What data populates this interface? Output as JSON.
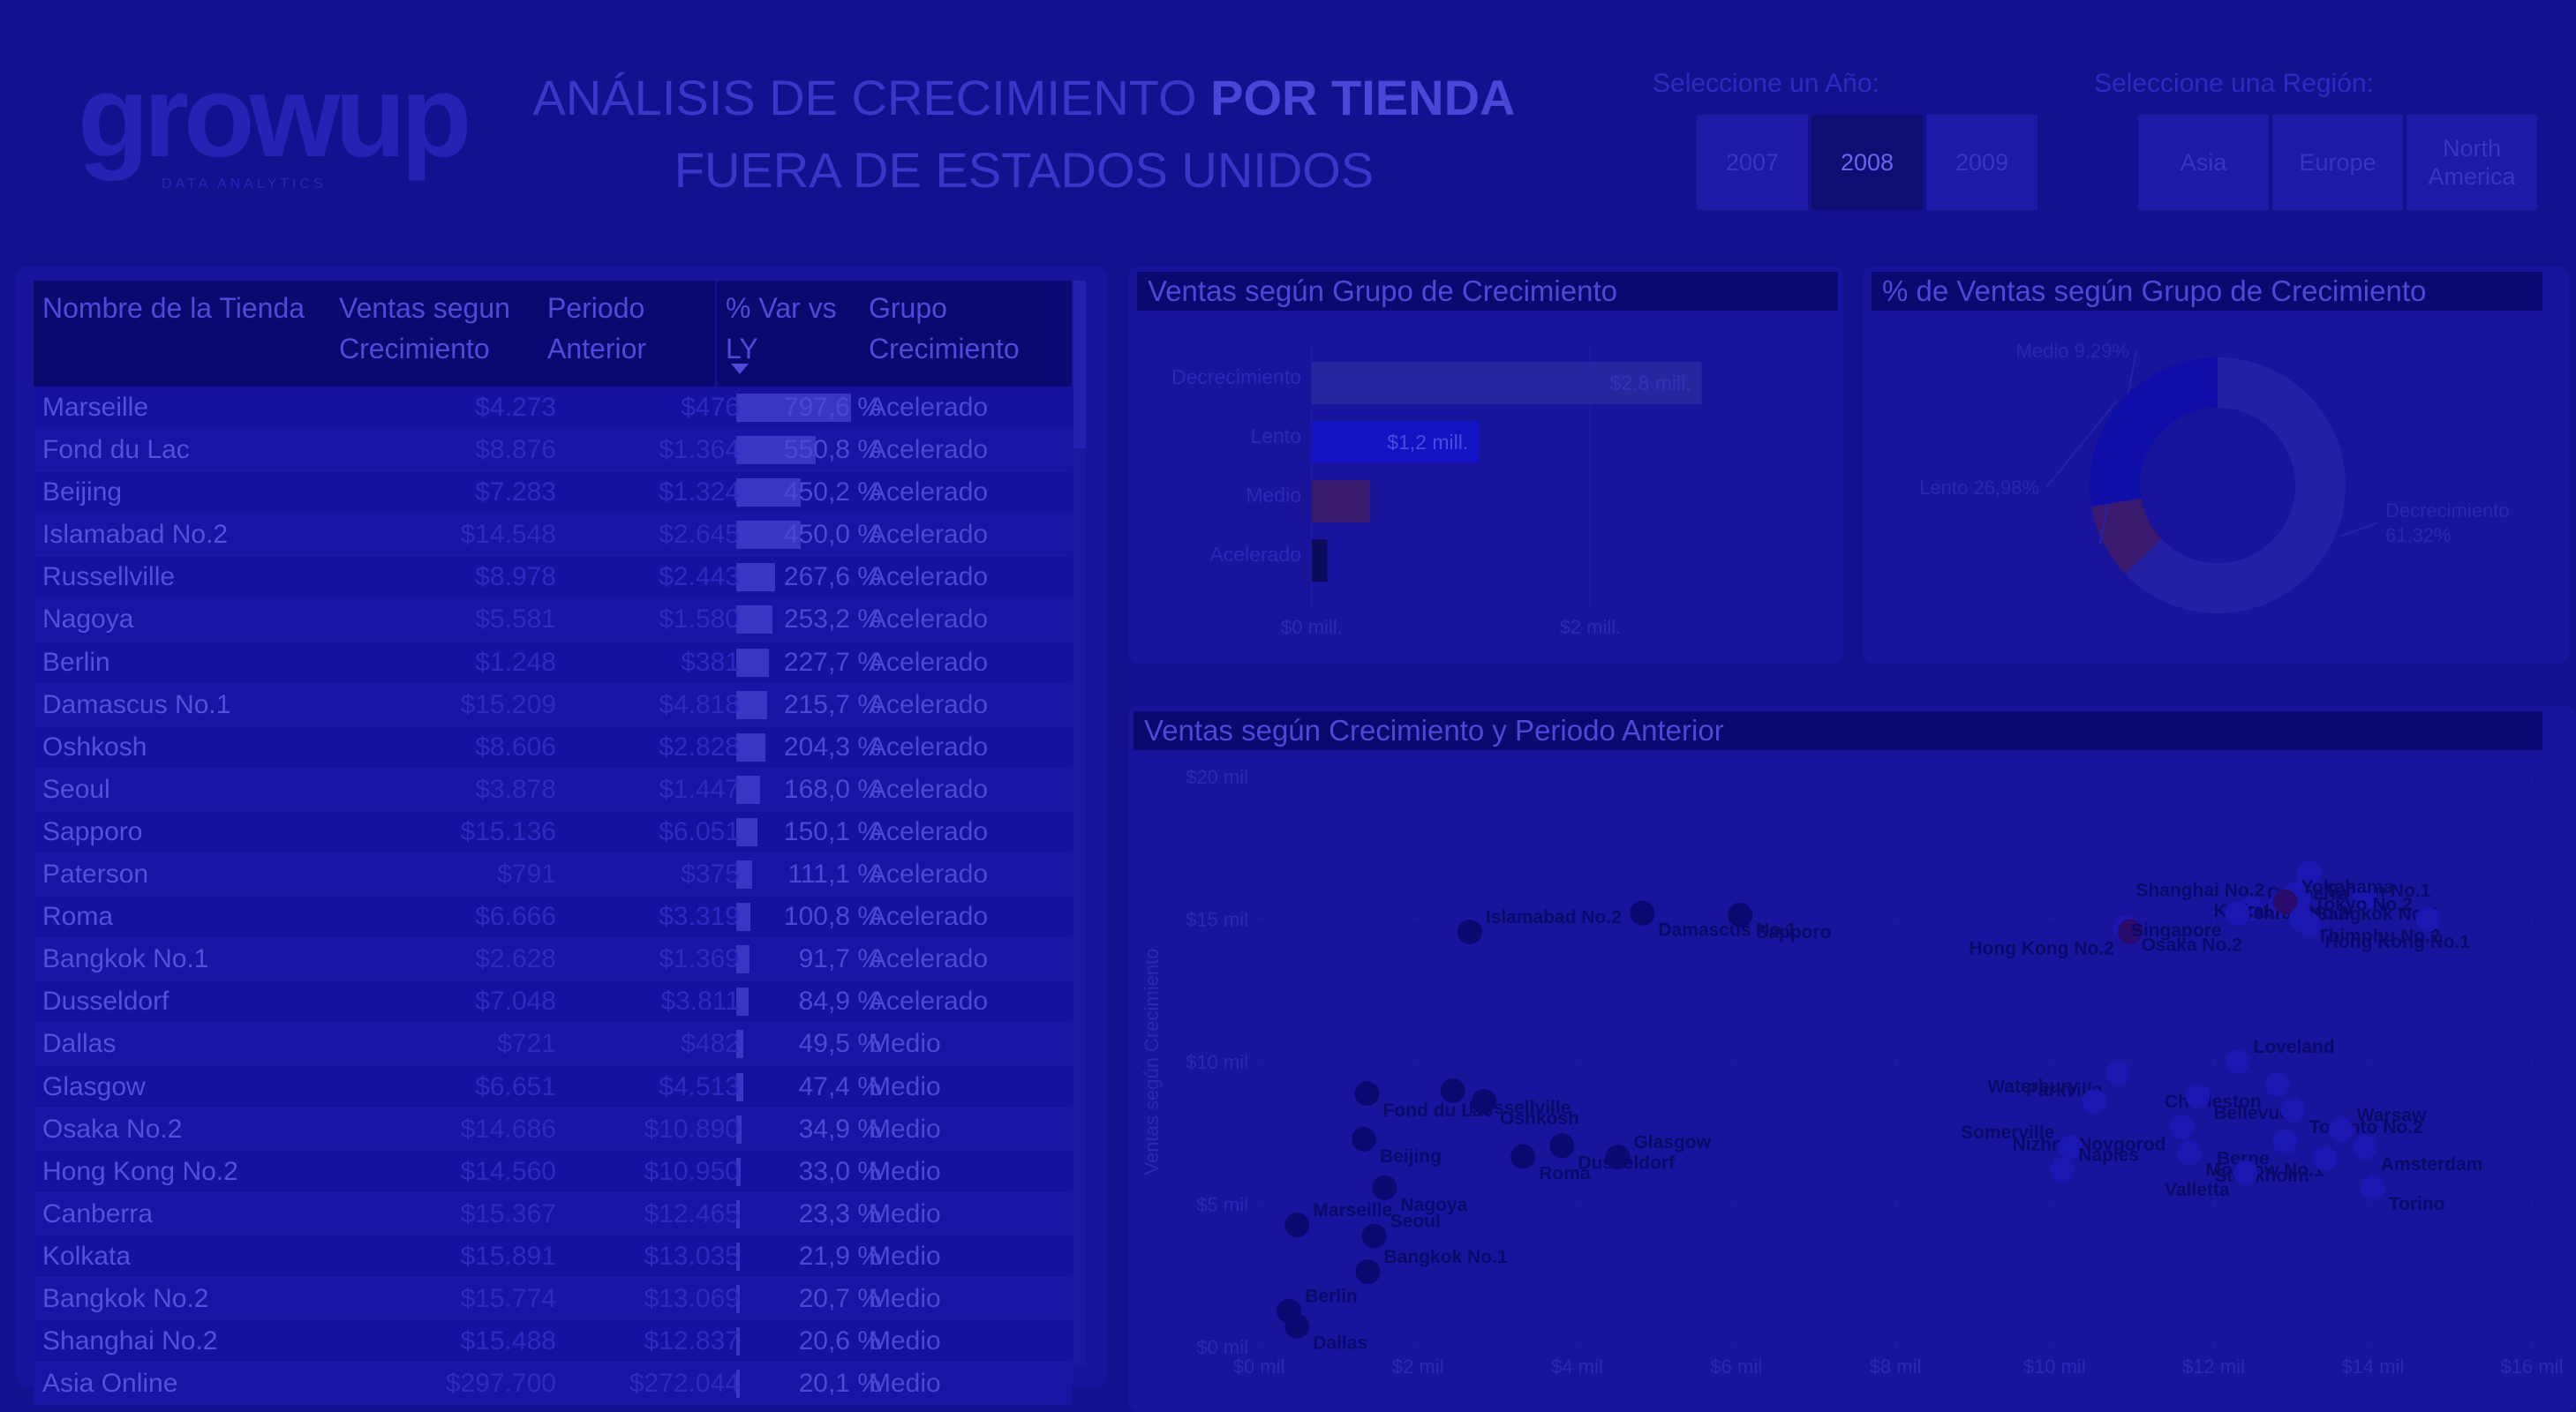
{
  "header": {
    "logo_text": "growup",
    "logo_sub": "DATA ANALYTICS",
    "title_line1_regular": "ANÁLISIS DE CRECIMIENTO ",
    "title_line1_bold": "POR TIENDA",
    "title_line2": "FUERA DE ESTADOS UNIDOS"
  },
  "year_slicer": {
    "label": "Seleccione un Año:",
    "options": [
      {
        "label": "2007",
        "selected": false
      },
      {
        "label": "2008",
        "selected": true
      },
      {
        "label": "2009",
        "selected": false
      }
    ]
  },
  "region_slicer": {
    "label": "Seleccione una Región:",
    "options": [
      {
        "label": "Asia",
        "selected": false
      },
      {
        "label": "Europe",
        "selected": false
      },
      {
        "label": "North America",
        "selected": false
      }
    ]
  },
  "table": {
    "columns": [
      "Nombre de la Tienda",
      "Ventas segun Crecimiento",
      "Periodo Anterior",
      "% Var vs LY",
      "Grupo Crecimiento"
    ],
    "rows": [
      {
        "name": "Marseille",
        "sales": "$4.273",
        "prev": "$476",
        "var": "797,6 %",
        "var_value": 797.6,
        "group": "Acelerado"
      },
      {
        "name": "Fond du Lac",
        "sales": "$8.876",
        "prev": "$1.364",
        "var": "550,8 %",
        "var_value": 550.8,
        "group": "Acelerado"
      },
      {
        "name": "Beijing",
        "sales": "$7.283",
        "prev": "$1.324",
        "var": "450,2 %",
        "var_value": 450.2,
        "group": "Acelerado"
      },
      {
        "name": "Islamabad No.2",
        "sales": "$14.548",
        "prev": "$2.645",
        "var": "450,0 %",
        "var_value": 450.0,
        "group": "Acelerado"
      },
      {
        "name": "Russellville",
        "sales": "$8.978",
        "prev": "$2.443",
        "var": "267,6 %",
        "var_value": 267.6,
        "group": "Acelerado"
      },
      {
        "name": "Nagoya",
        "sales": "$5.581",
        "prev": "$1.580",
        "var": "253,2 %",
        "var_value": 253.2,
        "group": "Acelerado"
      },
      {
        "name": "Berlin",
        "sales": "$1.248",
        "prev": "$381",
        "var": "227,7 %",
        "var_value": 227.7,
        "group": "Acelerado"
      },
      {
        "name": "Damascus No.1",
        "sales": "$15.209",
        "prev": "$4.818",
        "var": "215,7 %",
        "var_value": 215.7,
        "group": "Acelerado"
      },
      {
        "name": "Oshkosh",
        "sales": "$8.606",
        "prev": "$2.828",
        "var": "204,3 %",
        "var_value": 204.3,
        "group": "Acelerado"
      },
      {
        "name": "Seoul",
        "sales": "$3.878",
        "prev": "$1.447",
        "var": "168,0 %",
        "var_value": 168.0,
        "group": "Acelerado"
      },
      {
        "name": "Sapporo",
        "sales": "$15.136",
        "prev": "$6.051",
        "var": "150,1 %",
        "var_value": 150.1,
        "group": "Acelerado"
      },
      {
        "name": "Paterson",
        "sales": "$791",
        "prev": "$375",
        "var": "111,1 %",
        "var_value": 111.1,
        "group": "Acelerado"
      },
      {
        "name": "Roma",
        "sales": "$6.666",
        "prev": "$3.319",
        "var": "100,8 %",
        "var_value": 100.8,
        "group": "Acelerado"
      },
      {
        "name": "Bangkok No.1",
        "sales": "$2.628",
        "prev": "$1.369",
        "var": "91,7 %",
        "var_value": 91.7,
        "group": "Acelerado"
      },
      {
        "name": "Dusseldorf",
        "sales": "$7.048",
        "prev": "$3.811",
        "var": "84,9 %",
        "var_value": 84.9,
        "group": "Acelerado"
      },
      {
        "name": "Dallas",
        "sales": "$721",
        "prev": "$482",
        "var": "49,5 %",
        "var_value": 49.5,
        "group": "Medio"
      },
      {
        "name": "Glasgow",
        "sales": "$6.651",
        "prev": "$4.513",
        "var": "47,4 %",
        "var_value": 47.4,
        "group": "Medio"
      },
      {
        "name": "Osaka No.2",
        "sales": "$14.686",
        "prev": "$10.890",
        "var": "34,9 %",
        "var_value": 34.9,
        "group": "Medio"
      },
      {
        "name": "Hong Kong No.2",
        "sales": "$14.560",
        "prev": "$10.950",
        "var": "33,0 %",
        "var_value": 33.0,
        "group": "Medio"
      },
      {
        "name": "Canberra",
        "sales": "$15.367",
        "prev": "$12.465",
        "var": "23,3 %",
        "var_value": 23.3,
        "group": "Medio"
      },
      {
        "name": "Kolkata",
        "sales": "$15.891",
        "prev": "$13.035",
        "var": "21,9 %",
        "var_value": 21.9,
        "group": "Medio"
      },
      {
        "name": "Bangkok No.2",
        "sales": "$15.774",
        "prev": "$13.069",
        "var": "20,7 %",
        "var_value": 20.7,
        "group": "Medio"
      },
      {
        "name": "Shanghai No.2",
        "sales": "$15.488",
        "prev": "$12.837",
        "var": "20,6 %",
        "var_value": 20.6,
        "group": "Medio"
      },
      {
        "name": "Asia Online",
        "sales": "$297.700",
        "prev": "$272.044",
        "var": "20,1 %",
        "var_value": 20.1,
        "group": "Medio"
      }
    ]
  },
  "bar_panel_title": "Ventas según Grupo de Crecimiento",
  "donut_panel_title": "% de Ventas según Grupo de Crecimiento",
  "scatter_panel_title": "Ventas según Crecimiento y Periodo Anterior",
  "chart_data": [
    {
      "type": "bar",
      "orientation": "horizontal",
      "title": "Ventas según Grupo de Crecimiento",
      "categories": [
        "Decrecimiento",
        "Lento",
        "Medio",
        "Acelerado"
      ],
      "values": [
        2.8,
        1.2,
        0.42,
        0.11
      ],
      "value_labels": [
        "$2,8 mill.",
        "$1,2 mill.",
        "",
        ""
      ],
      "xticks": [
        "$0 mill.",
        "$2 mill."
      ],
      "xtick_values": [
        0,
        2
      ],
      "xlim": [
        0,
        3.5
      ],
      "colors": [
        "#29259f",
        "#1313c4",
        "#3a1a6e",
        "#0c0a5c"
      ]
    },
    {
      "type": "pie",
      "donut": true,
      "title": "% de Ventas según Grupo de Crecimiento",
      "labels": [
        "Decrecimiento",
        "Medio",
        "Lento"
      ],
      "values": [
        61.32,
        9.29,
        26.98
      ],
      "slice_labels": [
        "Decrecimiento 61,32%",
        "Medio 9,29%",
        "Lento 26,98%"
      ],
      "colors": [
        "#2420a6",
        "#3a1a6e",
        "#0f0ea8"
      ]
    },
    {
      "type": "scatter",
      "title": "Ventas según Crecimiento y Periodo Anterior",
      "ylabel": "Ventas según Crecimiento",
      "yticks": [
        "$0 mil",
        "$5 mil",
        "$10 mil",
        "$15 mil",
        "$20 mil"
      ],
      "ytick_values": [
        0,
        5,
        10,
        15,
        20
      ],
      "xticks": [
        "$0 mil",
        "$2 mil",
        "$4 mil",
        "$6 mil",
        "$8 mil",
        "$10 mil",
        "$12 mil",
        "$14 mil",
        "$16 mil"
      ],
      "xtick_values": [
        0,
        2,
        4,
        6,
        8,
        10,
        12,
        14,
        16
      ],
      "xlim": [
        0,
        16
      ],
      "ylim": [
        0,
        20
      ],
      "points": [
        {
          "label": "Marseille",
          "x": 0.48,
          "y": 4.27
        },
        {
          "label": "Fond du Lac",
          "x": 1.36,
          "y": 8.88
        },
        {
          "label": "Beijing",
          "x": 1.32,
          "y": 7.28
        },
        {
          "label": "Islamabad No.2",
          "x": 2.65,
          "y": 14.55
        },
        {
          "label": "Russellville",
          "x": 2.44,
          "y": 8.98
        },
        {
          "label": "Nagoya",
          "x": 1.58,
          "y": 5.58
        },
        {
          "label": "Berlin",
          "x": 0.38,
          "y": 1.25
        },
        {
          "label": "Damascus No.1",
          "x": 4.82,
          "y": 15.21
        },
        {
          "label": "Oshkosh",
          "x": 2.83,
          "y": 8.61
        },
        {
          "label": "Seoul",
          "x": 1.45,
          "y": 3.88
        },
        {
          "label": "Sapporo",
          "x": 6.05,
          "y": 15.14
        },
        {
          "label": "Roma",
          "x": 3.32,
          "y": 6.67
        },
        {
          "label": "Bangkok No.1",
          "x": 1.37,
          "y": 2.63
        },
        {
          "label": "Dusseldorf",
          "x": 3.81,
          "y": 7.05
        },
        {
          "label": "Dallas",
          "x": 0.48,
          "y": 0.72
        },
        {
          "label": "Glasgow",
          "x": 4.51,
          "y": 6.65
        },
        {
          "label": "Osaka No.2",
          "x": 10.89,
          "y": 14.69
        },
        {
          "label": "Hong Kong No.2",
          "x": 10.95,
          "y": 14.56
        },
        {
          "label": "Canberra",
          "x": 12.47,
          "y": 15.37
        },
        {
          "label": "Kolkata",
          "x": 13.04,
          "y": 15.89
        },
        {
          "label": "Bangkok No.2",
          "x": 13.07,
          "y": 15.77
        },
        {
          "label": "Shanghai No.2",
          "x": 12.84,
          "y": 15.49
        },
        {
          "label": "Tehran No.1",
          "x": 13.2,
          "y": 16.6
        },
        {
          "label": "Tehran No.2",
          "x": 13.9,
          "y": 15.8
        },
        {
          "label": "Yokohama",
          "x": 12.9,
          "y": 15.6
        },
        {
          "label": "Singapore",
          "x": 12.3,
          "y": 15.2
        },
        {
          "label": "Thimphu No.2",
          "x": 13.1,
          "y": 15.0
        },
        {
          "label": "Tokyo No.2",
          "x": 14.7,
          "y": 15.0
        },
        {
          "label": "Hong Kong No.1",
          "x": 13.2,
          "y": 14.8
        },
        {
          "label": "Parkville",
          "x": 10.8,
          "y": 9.6
        },
        {
          "label": "Loveland",
          "x": 12.3,
          "y": 10.0
        },
        {
          "label": "Charleston",
          "x": 12.8,
          "y": 9.2
        },
        {
          "label": "Bellevue",
          "x": 11.8,
          "y": 8.8
        },
        {
          "label": "Waterbury",
          "x": 10.5,
          "y": 8.6
        },
        {
          "label": "Toronto No.2",
          "x": 13.0,
          "y": 8.3
        },
        {
          "label": "Nizhny Novgorod",
          "x": 11.6,
          "y": 7.7
        },
        {
          "label": "Warsaw",
          "x": 13.6,
          "y": 7.6
        },
        {
          "label": "Berne",
          "x": 12.9,
          "y": 7.2
        },
        {
          "label": "Amsterdam",
          "x": 13.9,
          "y": 7.0
        },
        {
          "label": "Somerville",
          "x": 10.2,
          "y": 7.0
        },
        {
          "label": "Moscow No.1",
          "x": 11.7,
          "y": 6.8
        },
        {
          "label": "Stockholm",
          "x": 13.4,
          "y": 6.6
        },
        {
          "label": "Naples",
          "x": 10.1,
          "y": 6.2
        },
        {
          "label": "Valletta",
          "x": 12.4,
          "y": 6.1
        },
        {
          "label": "Torino",
          "x": 14.0,
          "y": 5.6
        }
      ]
    }
  ]
}
